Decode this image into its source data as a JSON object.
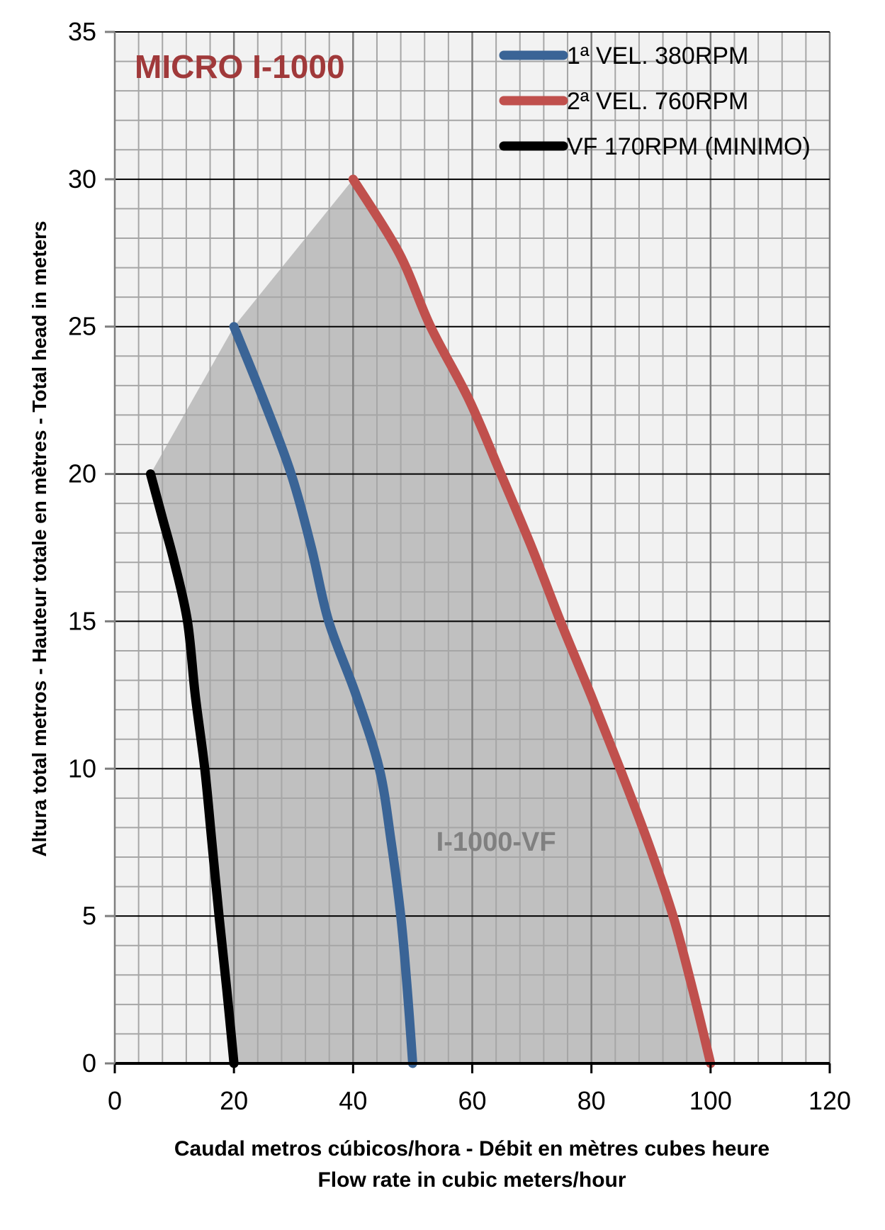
{
  "chart_data": {
    "type": "line",
    "title": "MICRO I-1000",
    "annotation": "I-1000-VF",
    "xlabel": [
      "Caudal metros cúbicos/hora - Débit en mètres cubes heure",
      "Flow rate in cubic meters/hour"
    ],
    "ylabel": "Altura total metros - Hauteur totale en mètres - Total head in meters",
    "xlim": [
      0,
      120
    ],
    "ylim": [
      0,
      35
    ],
    "xticks": [
      "0",
      "20",
      "40",
      "60",
      "80",
      "100",
      "120"
    ],
    "yticks": [
      "0",
      "5",
      "10",
      "15",
      "20",
      "25",
      "30",
      "35"
    ],
    "grid": true,
    "legend_position": "top-right",
    "series": [
      {
        "name": "1ª VEL. 380RPM",
        "color": "#3A6496",
        "x": [
          20,
          25,
          29.6,
          33,
          35.9,
          40.5,
          44.4,
          46.4,
          48,
          49.1,
          50
        ],
        "y": [
          25,
          22.5,
          20,
          17.5,
          15,
          12.5,
          10,
          7.5,
          5,
          2.5,
          0
        ]
      },
      {
        "name": "2ª VEL. 760RPM",
        "color": "#C0504D",
        "x": [
          40,
          47.7,
          53,
          59.5,
          64.8,
          70,
          74.8,
          79.9,
          84.8,
          89.5,
          93.7,
          97,
          100
        ],
        "y": [
          30,
          27.5,
          25,
          22.5,
          20,
          17.5,
          15,
          12.5,
          10,
          7.5,
          5,
          2.5,
          0
        ]
      },
      {
        "name": "VF 170RPM (MINIMO)",
        "color": "#000000",
        "x": [
          6,
          8,
          10,
          12.2,
          13.5,
          15.1,
          16.3,
          17.5,
          18.8,
          20
        ],
        "y": [
          20,
          18.5,
          17,
          15,
          12.5,
          10,
          7.5,
          5,
          2.5,
          0
        ]
      }
    ],
    "shaded_region_color": "#C0C0C0"
  }
}
